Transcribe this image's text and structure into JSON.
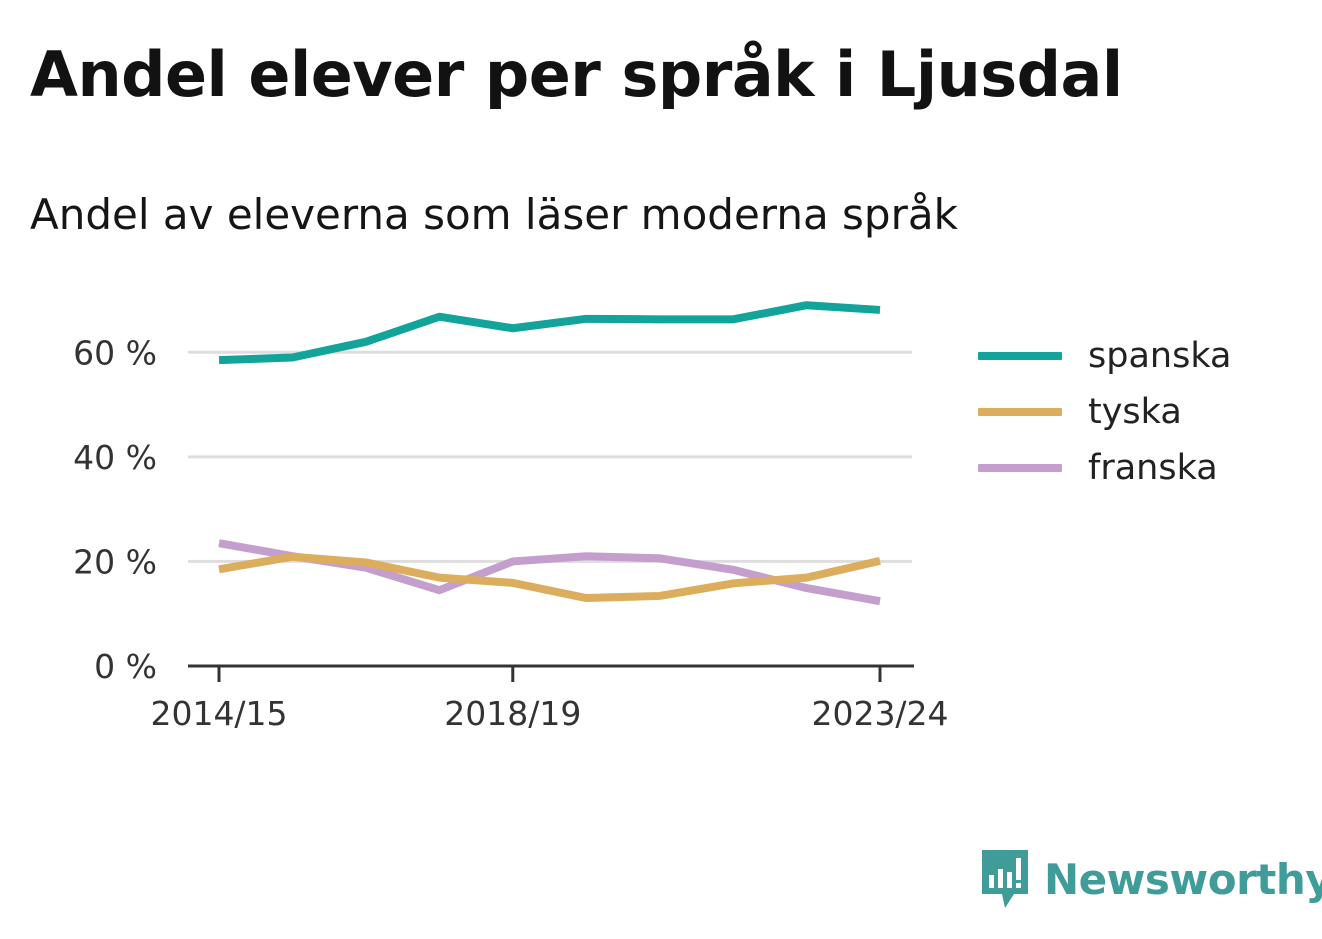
{
  "title": "Andel elever per språk i Ljusdal",
  "subtitle": "Andel av eleverna som läser moderna språk",
  "brand": {
    "name": "Newsworthy",
    "icon": "bar-chart-speech-bubble-icon",
    "color": "#3f9c98"
  },
  "chart_data": {
    "type": "line",
    "title": "Andel elever per språk i Ljusdal",
    "subtitle": "Andel av eleverna som läser moderna språk",
    "x": [
      "2014/15",
      "2015/16",
      "2016/17",
      "2017/18",
      "2018/19",
      "2019/20",
      "2020/21",
      "2021/22",
      "2022/23",
      "2023/24"
    ],
    "x_tick_labels": [
      "2014/15",
      "2018/19",
      "2023/24"
    ],
    "y_ticks": [
      0,
      20,
      40,
      60
    ],
    "y_tick_labels": [
      "0 %",
      "20 %",
      "40 %",
      "60 %"
    ],
    "ylim": [
      0,
      70
    ],
    "grid": true,
    "legend_position": "right",
    "series": [
      {
        "name": "spanska",
        "color": "#12a39a",
        "values": [
          58.5,
          59.0,
          62.0,
          66.8,
          64.6,
          66.4,
          66.3,
          66.3,
          69.0,
          68.1
        ]
      },
      {
        "name": "tyska",
        "color": "#dbad5c",
        "values": [
          18.5,
          20.9,
          19.8,
          16.9,
          15.9,
          13.0,
          13.4,
          15.8,
          16.9,
          20.1
        ]
      },
      {
        "name": "franska",
        "color": "#c49fcd",
        "values": [
          23.5,
          21.0,
          18.8,
          14.5,
          20.0,
          21.0,
          20.6,
          18.4,
          14.9,
          12.4
        ]
      }
    ]
  }
}
